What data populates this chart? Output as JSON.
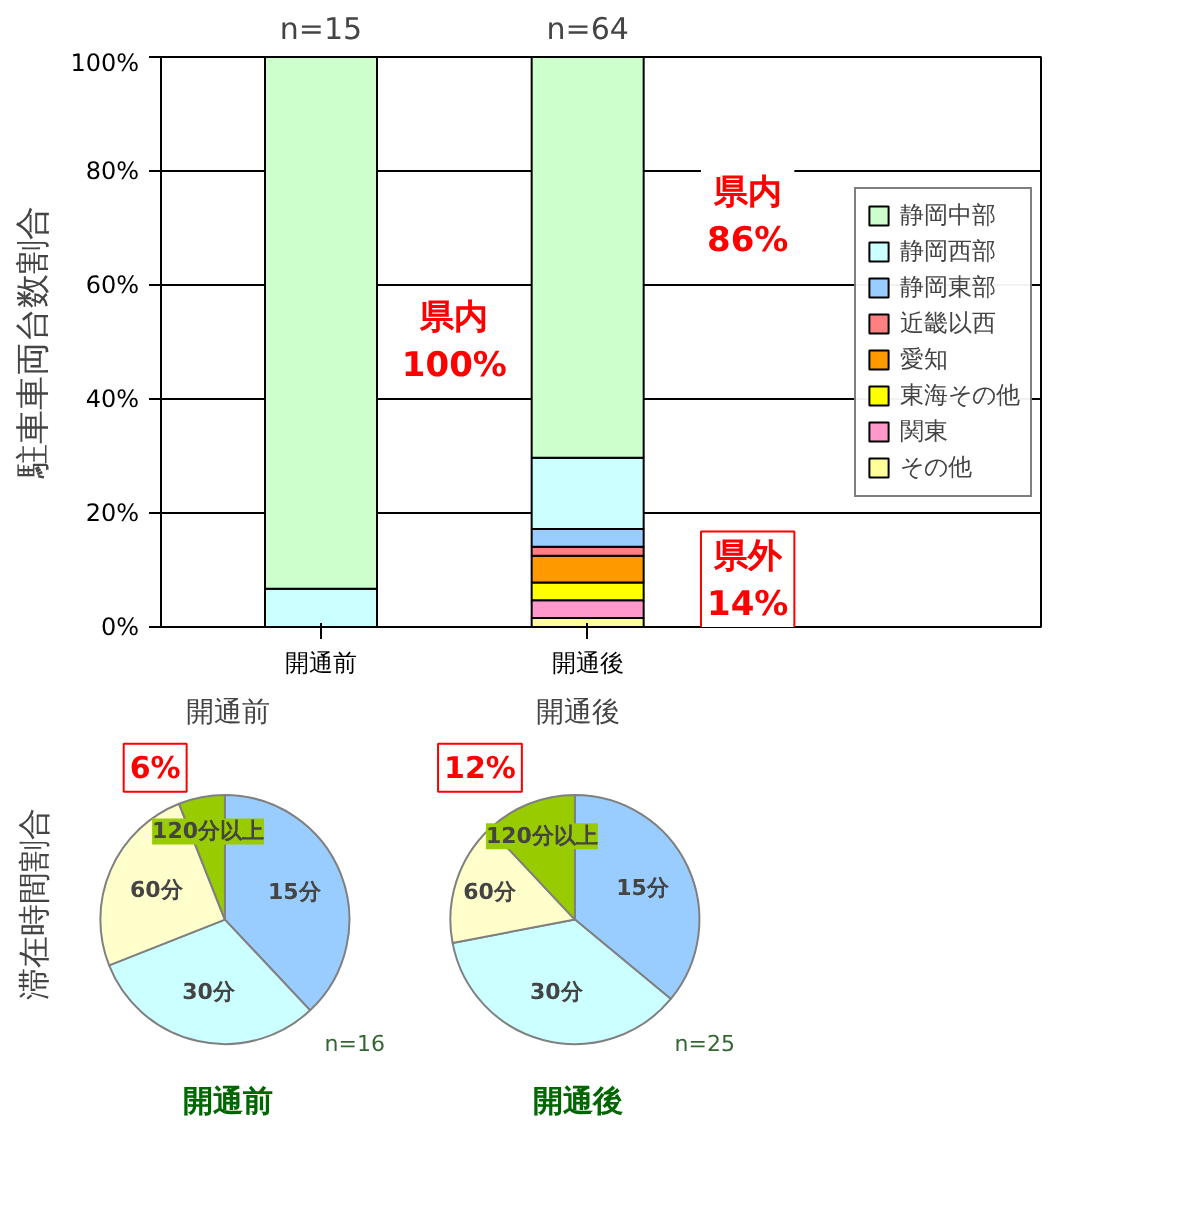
{
  "chart_data": [
    {
      "type": "bar",
      "stacked": true,
      "categories": [
        "開通前",
        "開通後"
      ],
      "ylabel": "駐車車両台数割合",
      "ylim": [
        0,
        100
      ],
      "yticks": [
        {
          "value": 0,
          "label": "0%"
        },
        {
          "value": 20,
          "label": "20%"
        },
        {
          "value": 40,
          "label": "40%"
        },
        {
          "value": 60,
          "label": "60%"
        },
        {
          "value": 80,
          "label": "80%"
        },
        {
          "value": 100,
          "label": "100%"
        }
      ],
      "grid": "y",
      "legend": "right",
      "series": [
        {
          "name": "その他",
          "color": "#ffff99",
          "values": [
            0,
            1.6
          ]
        },
        {
          "name": "関東",
          "color": "#ff99cc",
          "values": [
            0,
            3.1
          ]
        },
        {
          "name": "東海その他",
          "color": "#ffff00",
          "values": [
            0,
            3.1
          ]
        },
        {
          "name": "愛知",
          "color": "#ff9900",
          "values": [
            0,
            4.7
          ]
        },
        {
          "name": "近畿以西",
          "color": "#ff8080",
          "values": [
            0,
            1.6
          ]
        },
        {
          "name": "静岡東部",
          "color": "#99ccff",
          "values": [
            0,
            3.1
          ]
        },
        {
          "name": "静岡西部",
          "color": "#ccffff",
          "values": [
            6.7,
            12.5
          ]
        },
        {
          "name": "静岡中部",
          "color": "#ccffcc",
          "values": [
            93.3,
            70.3
          ]
        }
      ],
      "annotations": [
        {
          "text": "n=15",
          "x": "開通前",
          "y": 100
        },
        {
          "text": "n=64",
          "x": "開通後",
          "y": 100
        },
        "県内\n100%",
        "県内\n86%",
        "県外\n14%"
      ]
    },
    {
      "type": "pie",
      "title": "開通前",
      "xlabel": "開通前",
      "ylabel": "滞在時間割合",
      "categories": [
        "15分",
        "30分",
        "60分",
        "120分以上"
      ],
      "values": [
        38,
        31,
        25,
        6
      ],
      "colors": [
        "#99ccff",
        "#ccffff",
        "#ffffcc",
        "#99cc00"
      ],
      "value_labels": [
        null,
        null,
        null,
        "6%"
      ],
      "annotations": [
        "n=16"
      ]
    },
    {
      "type": "pie",
      "title": "開通後",
      "xlabel": "開通後",
      "categories": [
        "15分",
        "30分",
        "60分",
        "120分以上"
      ],
      "values": [
        36,
        36,
        16,
        12
      ],
      "colors": [
        "#99ccff",
        "#ccffff",
        "#ffffcc",
        "#99cc00"
      ],
      "value_labels": [
        null,
        null,
        null,
        "12%"
      ],
      "annotations": [
        "n=25"
      ]
    }
  ]
}
